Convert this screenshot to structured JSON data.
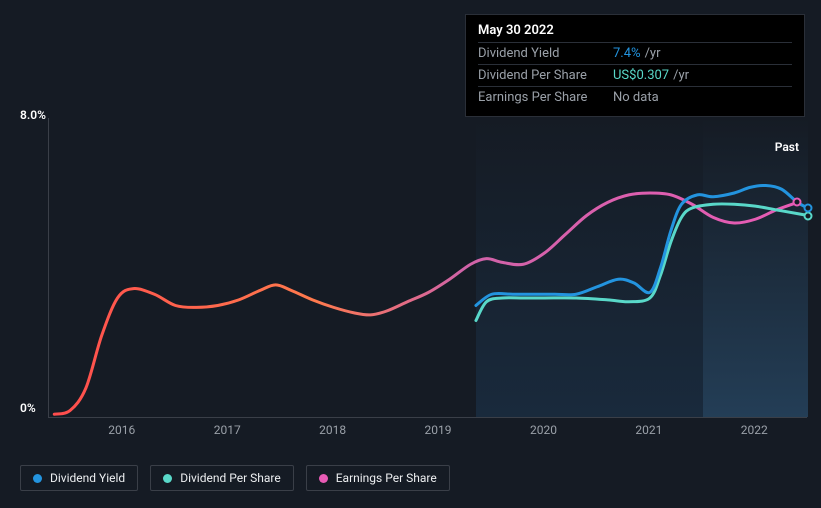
{
  "tooltip": {
    "date": "May 30 2022",
    "rows": [
      {
        "label": "Dividend Yield",
        "value": "7.4%",
        "suffix": "/yr",
        "color_class": "highlight-blue"
      },
      {
        "label": "Dividend Per Share",
        "value": "US$0.307",
        "suffix": "/yr",
        "color_class": "highlight-teal"
      },
      {
        "label": "Earnings Per Share",
        "value": "No data",
        "suffix": "",
        "color_class": "tooltip-nodata"
      }
    ]
  },
  "chart": {
    "type": "line",
    "past_label": "Past",
    "y_axis": {
      "min": 0,
      "max": 8.0,
      "top_label": "8.0%",
      "bottom_label": "0%"
    },
    "x_axis": {
      "start_year": 2015.3,
      "end_year": 2022.5,
      "ticks": [
        2016,
        2017,
        2018,
        2019,
        2020,
        2021,
        2022
      ]
    },
    "shaded_regions": [
      {
        "from_year": 2019.35,
        "to_year": 2021.5,
        "color": "rgba(30,60,90,0.45)"
      },
      {
        "from_year": 2021.5,
        "to_year": 2022.5,
        "color": "rgba(45,85,120,0.6)"
      }
    ],
    "series": [
      {
        "name": "Earnings Per Share",
        "stroke_width": 3,
        "gradient": true,
        "gradient_stops": [
          {
            "offset": 0,
            "color": "#ff4d4d"
          },
          {
            "offset": 0.35,
            "color": "#ff7a4d"
          },
          {
            "offset": 0.55,
            "color": "#d063a8"
          },
          {
            "offset": 1,
            "color": "#e85bb5"
          }
        ],
        "end_dot_color": "#e85bb5",
        "points": [
          [
            2015.35,
            0.1
          ],
          [
            2015.5,
            0.2
          ],
          [
            2015.65,
            0.8
          ],
          [
            2015.8,
            2.2
          ],
          [
            2015.95,
            3.2
          ],
          [
            2016.1,
            3.45
          ],
          [
            2016.3,
            3.3
          ],
          [
            2016.5,
            3.0
          ],
          [
            2016.7,
            2.95
          ],
          [
            2016.9,
            3.0
          ],
          [
            2017.1,
            3.15
          ],
          [
            2017.3,
            3.4
          ],
          [
            2017.45,
            3.55
          ],
          [
            2017.6,
            3.4
          ],
          [
            2017.8,
            3.15
          ],
          [
            2018.0,
            2.95
          ],
          [
            2018.2,
            2.8
          ],
          [
            2018.35,
            2.75
          ],
          [
            2018.5,
            2.85
          ],
          [
            2018.7,
            3.1
          ],
          [
            2018.9,
            3.35
          ],
          [
            2019.1,
            3.7
          ],
          [
            2019.3,
            4.1
          ],
          [
            2019.45,
            4.25
          ],
          [
            2019.6,
            4.15
          ],
          [
            2019.8,
            4.1
          ],
          [
            2020.0,
            4.4
          ],
          [
            2020.2,
            4.9
          ],
          [
            2020.4,
            5.4
          ],
          [
            2020.6,
            5.75
          ],
          [
            2020.8,
            5.95
          ],
          [
            2021.0,
            6.0
          ],
          [
            2021.2,
            5.95
          ],
          [
            2021.4,
            5.7
          ],
          [
            2021.6,
            5.35
          ],
          [
            2021.8,
            5.2
          ],
          [
            2022.0,
            5.3
          ],
          [
            2022.2,
            5.55
          ],
          [
            2022.4,
            5.75
          ]
        ]
      },
      {
        "name": "Dividend Per Share",
        "stroke_width": 3,
        "color": "#59d8c9",
        "end_dot_color": "#59d8c9",
        "points": [
          [
            2019.35,
            2.6
          ],
          [
            2019.45,
            3.1
          ],
          [
            2019.6,
            3.2
          ],
          [
            2019.8,
            3.2
          ],
          [
            2020.0,
            3.2
          ],
          [
            2020.3,
            3.2
          ],
          [
            2020.6,
            3.15
          ],
          [
            2020.8,
            3.1
          ],
          [
            2021.0,
            3.2
          ],
          [
            2021.1,
            3.8
          ],
          [
            2021.2,
            4.7
          ],
          [
            2021.3,
            5.35
          ],
          [
            2021.4,
            5.6
          ],
          [
            2021.6,
            5.7
          ],
          [
            2021.8,
            5.7
          ],
          [
            2022.0,
            5.65
          ],
          [
            2022.2,
            5.55
          ],
          [
            2022.4,
            5.45
          ],
          [
            2022.5,
            5.4
          ]
        ]
      },
      {
        "name": "Dividend Yield",
        "stroke_width": 3,
        "color": "#2394df",
        "end_dot_color": "#2394df",
        "points": [
          [
            2019.35,
            3.0
          ],
          [
            2019.5,
            3.3
          ],
          [
            2019.7,
            3.3
          ],
          [
            2019.9,
            3.3
          ],
          [
            2020.1,
            3.3
          ],
          [
            2020.3,
            3.3
          ],
          [
            2020.5,
            3.5
          ],
          [
            2020.7,
            3.7
          ],
          [
            2020.85,
            3.6
          ],
          [
            2021.0,
            3.35
          ],
          [
            2021.1,
            4.0
          ],
          [
            2021.2,
            5.0
          ],
          [
            2021.3,
            5.7
          ],
          [
            2021.45,
            5.95
          ],
          [
            2021.6,
            5.9
          ],
          [
            2021.8,
            6.0
          ],
          [
            2021.95,
            6.15
          ],
          [
            2022.1,
            6.2
          ],
          [
            2022.25,
            6.1
          ],
          [
            2022.4,
            5.75
          ],
          [
            2022.5,
            5.6
          ]
        ]
      }
    ],
    "legend": [
      {
        "label": "Dividend Yield",
        "color": "#2394df"
      },
      {
        "label": "Dividend Per Share",
        "color": "#59d8c9"
      },
      {
        "label": "Earnings Per Share",
        "color": "#e85bb5"
      }
    ]
  }
}
